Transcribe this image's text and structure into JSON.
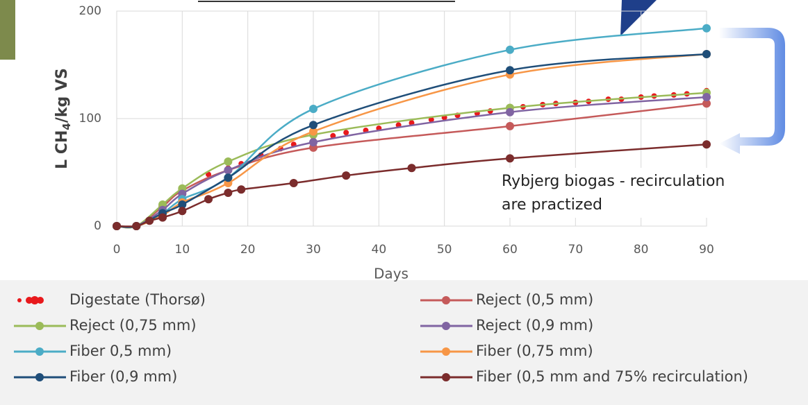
{
  "chart_data": {
    "type": "line",
    "x_label": "Days",
    "y_label": {
      "main": "L CH",
      "sub": "4",
      "rest": "/kg VS"
    },
    "annotation": [
      "Rybjerg biogas - recirculation",
      "are practized"
    ],
    "xlim": [
      0,
      90
    ],
    "xticks": [
      0,
      10,
      20,
      30,
      40,
      50,
      60,
      70,
      80,
      90
    ],
    "ylim": [
      0,
      200
    ],
    "yticks": [
      0,
      100,
      200
    ],
    "grid": true,
    "series": [
      {
        "name": "Digestate (Thorsø)",
        "color": "#e8191c",
        "style": "dots",
        "x": [
          0,
          3,
          5,
          7,
          10,
          14,
          17,
          19,
          22,
          25,
          27,
          30,
          33,
          35,
          38,
          40,
          43,
          45,
          48,
          50,
          52,
          55,
          57,
          60,
          62,
          65,
          67,
          70,
          72,
          75,
          77,
          80,
          82,
          85,
          87,
          90
        ],
        "values": [
          0,
          0,
          5,
          18,
          35,
          48,
          54,
          58,
          66,
          72,
          76,
          80,
          84,
          87,
          89,
          91,
          94,
          96,
          99,
          101,
          103,
          105,
          107,
          110,
          111,
          113,
          114,
          115,
          116,
          118,
          118,
          120,
          121,
          122,
          123,
          126
        ]
      },
      {
        "name": "Reject (0,5 mm)",
        "color": "#c55a5a",
        "x": [
          0,
          3,
          7,
          10,
          17,
          30,
          60,
          90
        ],
        "values": [
          0,
          0,
          18,
          33,
          52,
          73,
          93,
          114
        ]
      },
      {
        "name": "Reject (0,75 mm)",
        "color": "#9bbb59",
        "x": [
          0,
          3,
          7,
          10,
          17,
          30,
          60,
          90
        ],
        "values": [
          0,
          0,
          20,
          35,
          60,
          85,
          110,
          124
        ]
      },
      {
        "name": "Reject (0,9 mm)",
        "color": "#8064a2",
        "x": [
          0,
          3,
          7,
          10,
          17,
          30,
          60,
          90
        ],
        "values": [
          0,
          0,
          15,
          30,
          52,
          78,
          106,
          120
        ]
      },
      {
        "name": "Fiber 0,5 mm)",
        "color": "#4bacc6",
        "x": [
          0,
          3,
          7,
          10,
          17,
          30,
          60,
          90
        ],
        "values": [
          0,
          0,
          12,
          25,
          45,
          109,
          164,
          184
        ]
      },
      {
        "name": "Fiber (0,75 mm)",
        "color": "#f79646",
        "x": [
          0,
          3,
          7,
          10,
          17,
          30,
          60,
          90
        ],
        "values": [
          0,
          0,
          10,
          22,
          40,
          88,
          141,
          160
        ]
      },
      {
        "name": "Fiber (0,9 mm)",
        "color": "#1f4e79",
        "x": [
          0,
          3,
          7,
          10,
          17,
          30,
          60,
          90
        ],
        "values": [
          0,
          0,
          12,
          20,
          45,
          94,
          145,
          160
        ]
      },
      {
        "name": "Fiber (0,5 mm and 75% recirculation)",
        "color": "#7b2c2c",
        "x": [
          0,
          3,
          5,
          7,
          10,
          14,
          17,
          19,
          27,
          35,
          45,
          60,
          90
        ],
        "values": [
          0,
          0,
          5,
          8,
          14,
          25,
          31,
          34,
          40,
          47,
          54,
          63,
          76
        ]
      }
    ]
  }
}
